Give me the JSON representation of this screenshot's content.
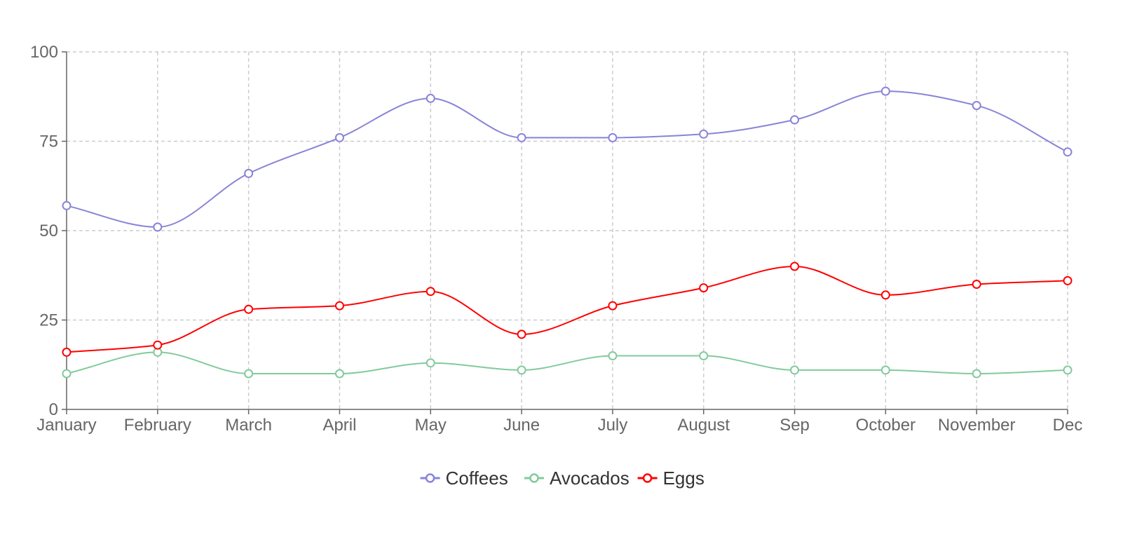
{
  "chart_data": {
    "type": "line",
    "categories": [
      "January",
      "February",
      "March",
      "April",
      "May",
      "June",
      "July",
      "August",
      "Sep",
      "October",
      "November",
      "Dec"
    ],
    "series": [
      {
        "name": "Coffees",
        "color": "#8884d8",
        "values": [
          57,
          51,
          66,
          76,
          87,
          76,
          76,
          77,
          81,
          89,
          85,
          72
        ]
      },
      {
        "name": "Avocados",
        "color": "#82ca9d",
        "values": [
          10,
          16,
          10,
          10,
          13,
          11,
          15,
          15,
          11,
          11,
          10,
          11
        ]
      },
      {
        "name": "Eggs",
        "color": "#ff0000",
        "values": [
          16,
          18,
          28,
          29,
          33,
          21,
          29,
          34,
          40,
          32,
          35,
          36
        ]
      }
    ],
    "y_ticks": [
      0,
      25,
      50,
      75,
      100
    ],
    "ylim": [
      0,
      100
    ],
    "grid": true,
    "curve": "monotone",
    "legend_position": "bottom-center",
    "xlabel": "",
    "ylabel": ""
  }
}
